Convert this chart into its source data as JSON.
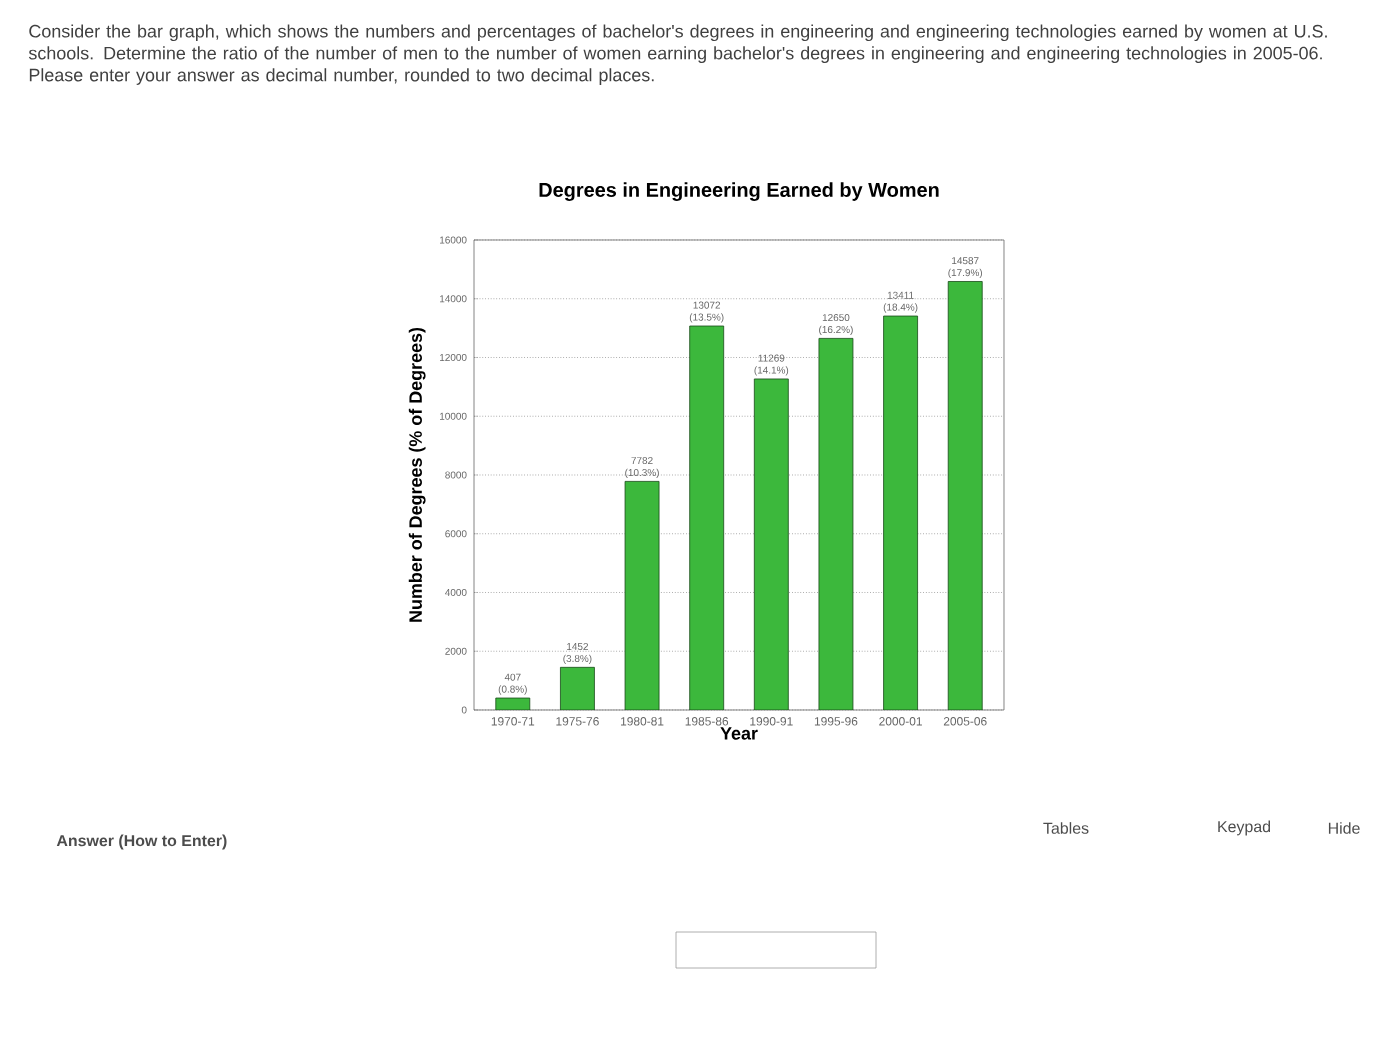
{
  "chart_data": {
    "type": "bar",
    "title": "Degrees in Engineering Earned by Women",
    "xlabel": "Year",
    "ylabel": "Number of Degrees (% of Degrees)",
    "categories": [
      "1970-71",
      "1975-76",
      "1980-81",
      "1985-86",
      "1990-91",
      "1995-96",
      "2000-01",
      "2005-06"
    ],
    "values": [
      407,
      1452,
      7782,
      13072,
      11269,
      12650,
      13411,
      14587
    ],
    "value_labels": [
      "407 (0.8%)",
      "1452 (3.8%)",
      "7782 (10.3%)",
      "13072 (13.5%)",
      "11269 (14.1%)",
      "12650 (16.2%)",
      "13411 (18.4%)",
      "14587 (17.9%)"
    ],
    "color": "#3cb83c",
    "ylim": [
      0,
      16000
    ],
    "yticks": [
      0,
      2000,
      4000,
      6000,
      8000,
      10000,
      12000,
      14000,
      16000
    ],
    "grid": "y",
    "annotations": [
      "Consider the bar graph, which shows the numbers and percentages of bachelor's degrees in engineering and engineering technologies earned by women at U.S. schools.  Determine the ratio of the number of men to the number of women earning bachelor's degrees in engineering and engineering technologies in 2005-06.  Please enter your answer as decimal number, rounded to two decimal places.",
      "Answer (How to Enter)",
      "Tables",
      "Keypad",
      "Hide"
    ]
  }
}
